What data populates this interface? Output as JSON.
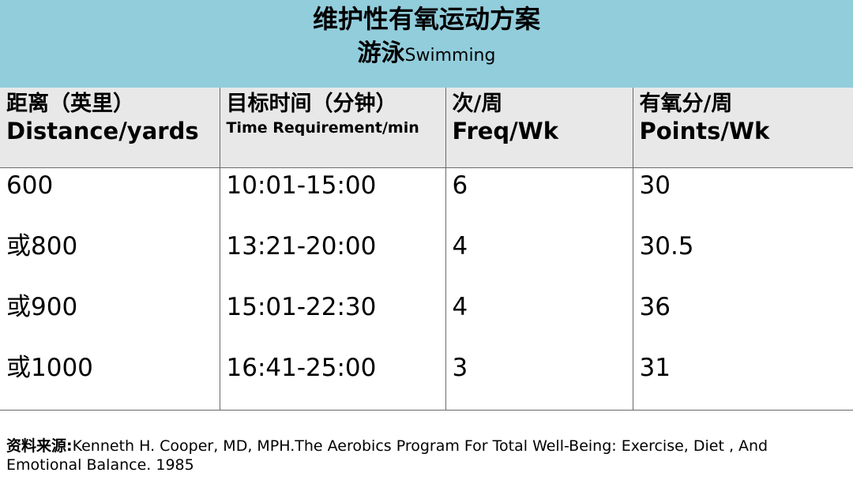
{
  "header": {
    "title": "维护性有氧运动方案",
    "subtitle_zh": "游泳",
    "subtitle_en": "Swimming"
  },
  "table": {
    "columns": [
      {
        "zh": "距离（英里）",
        "en": "Distance/yards"
      },
      {
        "zh": "目标时间（分钟）",
        "en": "Time Requirement/min"
      },
      {
        "zh": "次/周",
        "en": "Freq/Wk"
      },
      {
        "zh": "有氧分/周",
        "en": "Points/Wk"
      }
    ],
    "rows": [
      [
        "600",
        "10:01-15:00",
        "6",
        "30"
      ],
      [
        "或800",
        "13:21-20:00",
        "4",
        "30.5"
      ],
      [
        "或900",
        "15:01-22:30",
        "4",
        "36"
      ],
      [
        "或1000",
        "16:41-25:00",
        "3",
        "31"
      ]
    ]
  },
  "source": {
    "label": "资料来源:",
    "text": "Kenneth H. Cooper, MD, MPH.The Aerobics Program For Total Well-Being: Exercise, Diet , And Emotional Balance. 1985"
  },
  "colors": {
    "header_bg": "#92cddc",
    "table_header_bg": "#e8e8e8",
    "border": "#6a6a6a"
  }
}
